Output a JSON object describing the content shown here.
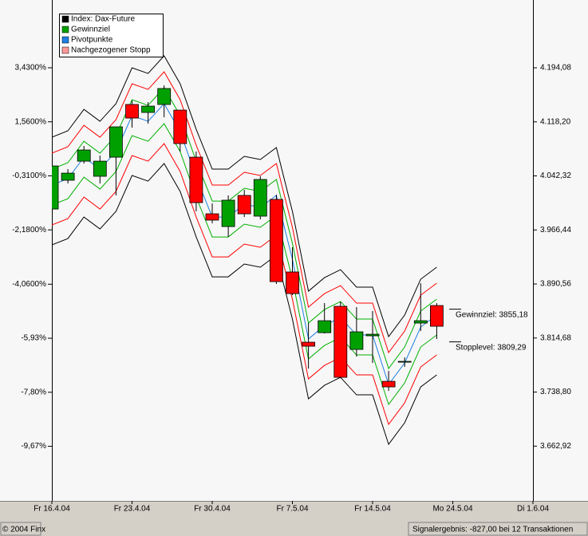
{
  "chart_data": {
    "type": "candlestick",
    "x": [
      0,
      1,
      2,
      3,
      4,
      5,
      6,
      7,
      8,
      9,
      10,
      11,
      12,
      13,
      14,
      15,
      16,
      17,
      18,
      19,
      20,
      21,
      22,
      23,
      24
    ],
    "xlim": [
      0,
      30
    ],
    "xticks": [
      {
        "value": 0,
        "label": "Fr 16.4.04"
      },
      {
        "value": 5,
        "label": "Fr 23.4.04"
      },
      {
        "value": 10,
        "label": "Fr 30.4.04"
      },
      {
        "value": 15,
        "label": "Fr 7.5.04"
      },
      {
        "value": 20,
        "label": "Fr 14.5.04"
      },
      {
        "value": 25,
        "label": "Mo 24.5.04"
      },
      {
        "value": 30,
        "label": "Di 1.6.04"
      }
    ],
    "ylim": [
      -11.56,
      5.776
    ],
    "yticks": [
      {
        "value": 3.43,
        "label": "3,4300%"
      },
      {
        "value": 1.56,
        "label": "1,5600%"
      },
      {
        "value": -0.31,
        "label": "-0,3100%"
      },
      {
        "value": -2.18,
        "label": "-2,1800%"
      },
      {
        "value": -4.06,
        "label": "-4,0600%"
      },
      {
        "value": -5.93,
        "label": "-5,93%"
      },
      {
        "value": -7.8,
        "label": "-7,80%"
      },
      {
        "value": -9.67,
        "label": "-9,67%"
      }
    ],
    "y2lim": [
      3586,
      4289.28
    ],
    "y2ticks": [
      {
        "value": 4194.08,
        "label": "4.194,08"
      },
      {
        "value": 4118.2,
        "label": "4.118,20"
      },
      {
        "value": 4042.32,
        "label": "4.042,32"
      },
      {
        "value": 3966.44,
        "label": "3.966,44"
      },
      {
        "value": 3890.56,
        "label": "3.890,56"
      },
      {
        "value": 3814.68,
        "label": "3.814,68"
      },
      {
        "value": 3738.8,
        "label": "3.738,80"
      },
      {
        "value": 3662.92,
        "label": "3.662,92"
      }
    ],
    "up_color": "#00a000",
    "down_color": "#ff0000",
    "candles": [
      {
        "open": 3995.8,
        "high": 4056.3,
        "low": 3995.8,
        "close": 4056.3
      },
      {
        "open": 4036.2,
        "high": 4051.8,
        "low": 4031.7,
        "close": 4046.2
      },
      {
        "open": 4063.0,
        "high": 4084.3,
        "low": 4059.7,
        "close": 4078.7
      },
      {
        "open": 4041.8,
        "high": 4070.9,
        "low": 4031.7,
        "close": 4063.0
      },
      {
        "open": 4068.6,
        "high": 4111.2,
        "low": 4014.9,
        "close": 4111.2
      },
      {
        "open": 4142.6,
        "high": 4148.2,
        "low": 4110.1,
        "close": 4123.5
      },
      {
        "open": 4131.4,
        "high": 4145.9,
        "low": 4115.7,
        "close": 4140.3
      },
      {
        "open": 4142.6,
        "high": 4169.4,
        "low": 4124.6,
        "close": 4165.0
      },
      {
        "open": 4134.7,
        "high": 4134.7,
        "low": 4076.5,
        "close": 4087.7
      },
      {
        "open": 4068.6,
        "high": 4076.5,
        "low": 3992.5,
        "close": 4004.8
      },
      {
        "open": 3989.1,
        "high": 4003.7,
        "low": 3975.7,
        "close": 3980.2
      },
      {
        "open": 3971.2,
        "high": 4014.9,
        "low": 3956.6,
        "close": 4008.2
      },
      {
        "open": 4014.9,
        "high": 4022.7,
        "low": 3984.6,
        "close": 3989.1
      },
      {
        "open": 3985.8,
        "high": 4041.8,
        "low": 3981.3,
        "close": 4037.3
      },
      {
        "open": 4009.3,
        "high": 4016.0,
        "low": 3890.6,
        "close": 3893.9
      },
      {
        "open": 3907.4,
        "high": 3942.1,
        "low": 3874.9,
        "close": 3877.1
      },
      {
        "open": 3808.8,
        "high": 3835.7,
        "low": 3771.8,
        "close": 3803.2
      },
      {
        "open": 3822.2,
        "high": 3863.7,
        "low": 3821.1,
        "close": 3839.0
      },
      {
        "open": 3859.2,
        "high": 3865.9,
        "low": 3758.4,
        "close": 3759.5
      },
      {
        "open": 3798.7,
        "high": 3858.1,
        "low": 3788.6,
        "close": 3823.4
      },
      {
        "open": 3817.8,
        "high": 3852.5,
        "low": 3779.7,
        "close": 3820.0
      },
      {
        "open": 3753.9,
        "high": 3768.5,
        "low": 3740.5,
        "close": 3746.1
      },
      {
        "open": 3780.8,
        "high": 3787.5,
        "low": 3774.1,
        "close": 3781.9
      },
      {
        "open": 3835.7,
        "high": 3891.7,
        "low": 3824.5,
        "close": 3839.0
      },
      {
        "open": 3860.3,
        "high": 3863.7,
        "low": 3813.3,
        "close": 3831.2
      }
    ],
    "lines": [
      {
        "color": "#000000",
        "values": [
          4096.6,
          4105.6,
          4135.8,
          4119.0,
          4143.7,
          4194.1,
          4186.2,
          4210.9,
          4171.7,
          4107.8,
          4051.8,
          4051.8,
          4069.8,
          4065.3,
          4082.1,
          3992.5,
          3880.5,
          3899.5,
          3910.7,
          3886.1,
          3886.1,
          3816.6,
          3846.9,
          3897.3,
          3914.1
        ]
      },
      {
        "color": "#ff0000",
        "values": [
          4074.2,
          4083.2,
          4113.4,
          4096.6,
          4121.3,
          4171.7,
          4163.8,
          4188.5,
          4149.3,
          4085.4,
          4029.4,
          4029.4,
          4047.4,
          4042.9,
          4059.7,
          3970.1,
          3858.1,
          3877.1,
          3888.3,
          3863.7,
          3863.7,
          3794.2,
          3824.5,
          3874.9,
          3891.7
        ]
      },
      {
        "color": "#00b000",
        "values": [
          4051.8,
          4060.8,
          4091.0,
          4074.2,
          4098.9,
          4149.3,
          4141.4,
          4166.1,
          4126.9,
          4063.0,
          4007.0,
          4007.0,
          4025.0,
          4020.5,
          4037.3,
          3947.7,
          3835.7,
          3854.7,
          3865.9,
          3841.3,
          3841.3,
          3771.8,
          3802.1,
          3852.5,
          3869.3
        ]
      },
      {
        "color": "#1e7fe0",
        "values": [
          4029.4,
          4038.4,
          4068.6,
          4051.8,
          4076.5,
          4126.9,
          4119.0,
          4143.7,
          4104.5,
          4040.6,
          3984.6,
          3984.6,
          4002.6,
          3998.1,
          4014.9,
          3925.3,
          3813.3,
          3832.3,
          3843.5,
          3818.9,
          3818.9,
          3749.4,
          3779.7,
          3830.1,
          3846.9
        ]
      },
      {
        "color": "#00b000",
        "values": [
          4001.4,
          4010.4,
          4040.6,
          4023.8,
          4048.5,
          4098.9,
          4091.0,
          4115.7,
          4076.5,
          4012.6,
          3956.6,
          3956.6,
          3974.6,
          3970.1,
          3986.9,
          3897.3,
          3785.3,
          3804.3,
          3815.5,
          3790.9,
          3790.9,
          3721.4,
          3751.7,
          3802.1,
          3818.9
        ]
      },
      {
        "color": "#ff0000",
        "values": [
          3973.4,
          3982.4,
          4012.6,
          3995.8,
          4020.5,
          4070.9,
          4063.0,
          4087.7,
          4048.5,
          3984.6,
          3928.6,
          3928.6,
          3946.6,
          3942.1,
          3958.9,
          3869.3,
          3757.3,
          3776.3,
          3787.5,
          3762.9,
          3762.9,
          3693.4,
          3723.7,
          3774.1,
          3790.9
        ]
      },
      {
        "color": "#000000",
        "values": [
          3945.4,
          3954.4,
          3984.6,
          3967.8,
          3992.5,
          4042.9,
          4035.0,
          4059.7,
          4020.5,
          3956.6,
          3900.6,
          3900.6,
          3918.6,
          3914.1,
          3930.9,
          3841.3,
          3729.3,
          3748.3,
          3759.5,
          3734.9,
          3734.9,
          3665.4,
          3695.7,
          3746.1,
          3762.9
        ]
      }
    ],
    "legend": [
      {
        "label": "Index: Dax-Future",
        "color": "#000000"
      },
      {
        "label": "Gewinnziel",
        "color": "#00a000"
      },
      {
        "label": "Pivotpunkte",
        "color": "#1e7fe0"
      },
      {
        "label": "Nachgezogener Stopp",
        "color": "#ff9999"
      }
    ],
    "annotations": [
      {
        "label": "Gewinnziel: 3855,18",
        "value": 3855.18
      },
      {
        "label": "Stopplevel: 3809,29",
        "value": 3809.29
      }
    ],
    "footer_left": "© 2004 Finx",
    "footer_right": "Signalergebnis: -827,00 bei 12 Transaktionen"
  }
}
